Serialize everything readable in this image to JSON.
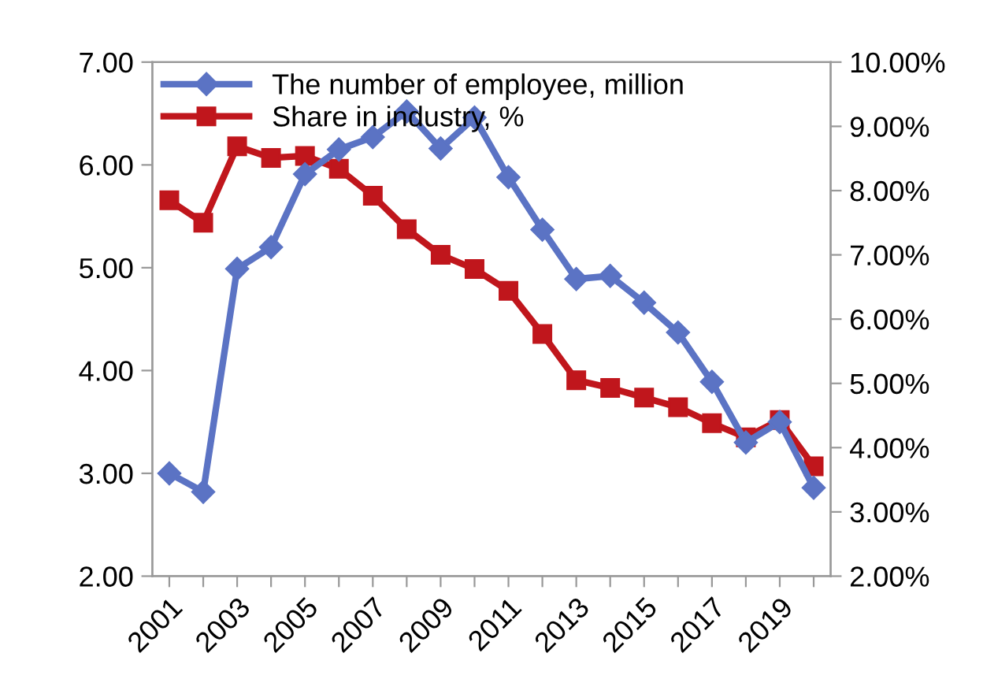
{
  "chart_data": {
    "type": "line",
    "categories": [
      "2001",
      null,
      "2003",
      null,
      "2005",
      null,
      "2007",
      null,
      "2009",
      null,
      "2011",
      null,
      "2013",
      null,
      "2015",
      null,
      "2017",
      null,
      "2019",
      null
    ],
    "series": [
      {
        "name": "The number of employee, million",
        "color": "#5b73c4",
        "marker": "diamond",
        "values": [
          3.0,
          2.82,
          4.99,
          5.2,
          5.91,
          6.15,
          6.27,
          6.52,
          6.16,
          6.46,
          5.88,
          5.37,
          4.89,
          4.92,
          4.66,
          4.37,
          3.89,
          3.3,
          3.5,
          2.86
        ]
      },
      {
        "name": "Share in industry, %",
        "color": "#c0161c",
        "marker": "square",
        "axis": "y2",
        "values": [
          7.85,
          7.5,
          8.69,
          8.51,
          8.54,
          8.34,
          7.92,
          7.4,
          7.0,
          6.78,
          6.44,
          5.77,
          5.05,
          4.93,
          4.78,
          4.63,
          4.38,
          4.16,
          4.43,
          3.71
        ]
      }
    ],
    "ylim": [
      2,
      7
    ],
    "yticks": [
      {
        "value": 2,
        "label": "2.00"
      },
      {
        "value": 3,
        "label": "3.00"
      },
      {
        "value": 4,
        "label": "4.00"
      },
      {
        "value": 5,
        "label": "5.00"
      },
      {
        "value": 6,
        "label": "6.00"
      },
      {
        "value": 7,
        "label": "7.00"
      }
    ],
    "y2lim": [
      2,
      10
    ],
    "y2ticks": [
      {
        "value": 2,
        "label": "2.00%"
      },
      {
        "value": 3,
        "label": "3.00%"
      },
      {
        "value": 4,
        "label": "4.00%"
      },
      {
        "value": 5,
        "label": "5.00%"
      },
      {
        "value": 6,
        "label": "6.00%"
      },
      {
        "value": 7,
        "label": "7.00%"
      },
      {
        "value": 8,
        "label": "8.00%"
      },
      {
        "value": 9,
        "label": "9.00%"
      },
      {
        "value": 10,
        "label": "10.00%"
      }
    ],
    "grid": false,
    "legend": "top left",
    "line_style": "solid"
  }
}
